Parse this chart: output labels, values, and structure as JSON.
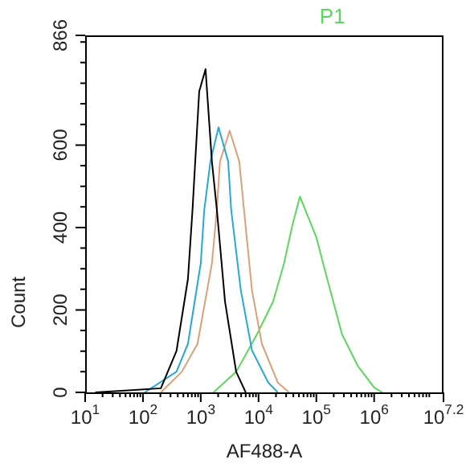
{
  "chart_data": {
    "type": "line",
    "title": "P1",
    "xlabel": "AF488-A",
    "ylabel": "Count",
    "log": "x",
    "xlim": [
      10,
      15848932
    ],
    "xticks": [
      {
        "value": 10,
        "label": "10$^{1}$"
      },
      {
        "value": 100,
        "label": "10$^{2}$"
      },
      {
        "value": 1000,
        "label": "10$^{3}$"
      },
      {
        "value": 10000,
        "label": "10$^{4}$"
      },
      {
        "value": 100000,
        "label": "10$^{5}$"
      },
      {
        "value": 1000000,
        "label": "10$^{6}$"
      },
      {
        "value": 15848932,
        "label": "10$^{7.2}$"
      }
    ],
    "ylim": [
      0,
      866
    ],
    "yticks": [
      0,
      200,
      400,
      600,
      866
    ],
    "grid": false,
    "legend": false,
    "marker": "none",
    "line_style": "solid",
    "series": [
      {
        "color": "#000000",
        "x": [
          15,
          56,
          204,
          380,
          600,
          720,
          940,
          1210,
          1560,
          1900,
          2630,
          4100,
          6000
        ],
        "values": [
          0,
          5,
          10,
          100,
          275,
          443,
          730,
          784,
          560,
          443,
          220,
          50,
          0
        ]
      },
      {
        "color": "#29a8d8",
        "x": [
          107,
          380,
          600,
          1000,
          1150,
          1470,
          2030,
          2980,
          3360,
          4940,
          7700,
          14700,
          21500
        ],
        "values": [
          0,
          50,
          118,
          313,
          443,
          560,
          643,
          560,
          443,
          247,
          102,
          24,
          0
        ]
      },
      {
        "color": "#d9a07a",
        "x": [
          204,
          470,
          880,
          1560,
          1900,
          2150,
          3160,
          4640,
          5600,
          7700,
          11400,
          21500,
          33600
        ],
        "values": [
          0,
          50,
          118,
          313,
          443,
          560,
          635,
          560,
          443,
          247,
          118,
          24,
          0
        ]
      },
      {
        "color": "#5cd65c",
        "x": [
          1660,
          4100,
          9400,
          17800,
          27600,
          38300,
          52000,
          100000,
          147000,
          278000,
          527000,
          1000000,
          1380000
        ],
        "values": [
          0,
          50,
          141,
          220,
          313,
          404,
          475,
          376,
          286,
          141,
          63,
          12,
          0
        ]
      }
    ]
  }
}
